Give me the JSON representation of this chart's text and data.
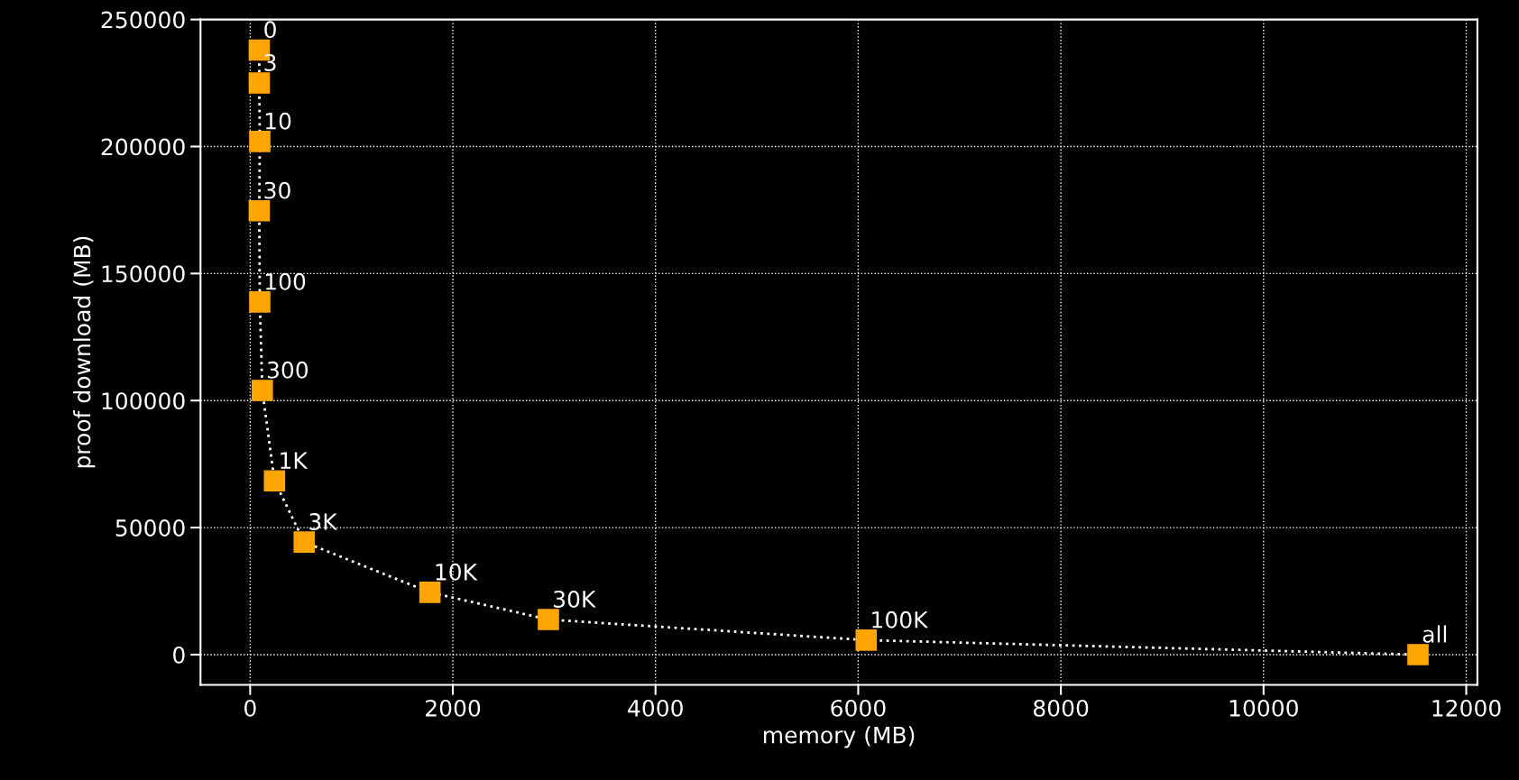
{
  "chart_data": {
    "type": "line",
    "xlabel": "memory (MB)",
    "ylabel": "proof download (MB)",
    "x": [
      90,
      90,
      95,
      90,
      95,
      120,
      240,
      533,
      1774,
      2943,
      6079,
      11524
    ],
    "series": [
      {
        "color": "#ffa500",
        "values": [
          238000,
          225000,
          202000,
          174700,
          138800,
          104000,
          68400,
          44300,
          24500,
          13800,
          5700,
          0
        ]
      }
    ],
    "annotations": [
      {
        "text": "0",
        "x": 90,
        "y": 238000
      },
      {
        "text": "3",
        "x": 90,
        "y": 225000
      },
      {
        "text": "10",
        "x": 95,
        "y": 202000
      },
      {
        "text": "30",
        "x": 90,
        "y": 174700
      },
      {
        "text": "100",
        "x": 95,
        "y": 138800
      },
      {
        "text": "300",
        "x": 120,
        "y": 104000
      },
      {
        "text": "1K",
        "x": 240,
        "y": 68400
      },
      {
        "text": "3K",
        "x": 533,
        "y": 44300
      },
      {
        "text": "10K",
        "x": 1774,
        "y": 24500
      },
      {
        "text": "30K",
        "x": 2943,
        "y": 13800
      },
      {
        "text": "100K",
        "x": 6079,
        "y": 5700
      },
      {
        "text": "all",
        "x": 11524,
        "y": 0
      }
    ],
    "xlim": [
      -490,
      12110
    ],
    "ylim": [
      -11900,
      250000
    ],
    "xticks": [
      0,
      2000,
      4000,
      6000,
      8000,
      10000,
      12000
    ],
    "yticks": [
      0,
      50000,
      100000,
      150000,
      200000,
      250000
    ],
    "grid": true,
    "marker": "square",
    "line_style": "dotted",
    "legend": false
  }
}
